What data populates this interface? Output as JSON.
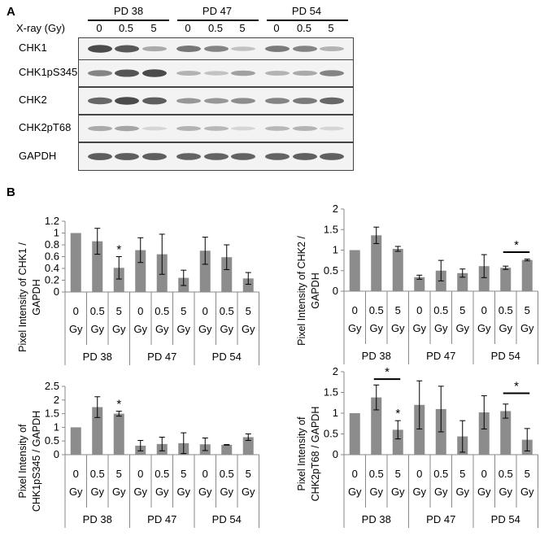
{
  "panel_a": {
    "letter": "A",
    "xray_label": "X-ray (Gy)",
    "groups": [
      "PD 38",
      "PD 47",
      "PD 54"
    ],
    "doses": [
      "0",
      "0.5",
      "5",
      "0",
      "0.5",
      "5",
      "0",
      "0.5",
      "5"
    ],
    "blots": [
      {
        "label": "CHK1",
        "intensity": [
          0.85,
          0.78,
          0.35,
          0.62,
          0.55,
          0.22,
          0.6,
          0.55,
          0.3
        ]
      },
      {
        "label": "CHK1pS345",
        "intensity": [
          0.55,
          0.8,
          0.85,
          0.3,
          0.22,
          0.4,
          0.3,
          0.35,
          0.55
        ]
      },
      {
        "label": "CHK2",
        "intensity": [
          0.7,
          0.85,
          0.75,
          0.45,
          0.45,
          0.5,
          0.55,
          0.6,
          0.7
        ]
      },
      {
        "label": "CHK2pT68",
        "intensity": [
          0.35,
          0.38,
          0.12,
          0.3,
          0.28,
          0.12,
          0.28,
          0.3,
          0.12
        ]
      },
      {
        "label": "GAPDH",
        "intensity": [
          0.75,
          0.75,
          0.75,
          0.72,
          0.72,
          0.72,
          0.72,
          0.74,
          0.74
        ]
      }
    ]
  },
  "panel_b": {
    "letter": "B"
  },
  "chart_data": [
    {
      "type": "bar",
      "ylabel": "Pixel Intensity of CHK1 / GAPDH",
      "ylabel_lines": [
        "Pixel Intensity of CHK1 /",
        "GAPDH"
      ],
      "categories": [
        "0 Gy",
        "0.5 Gy",
        "5 Gy",
        "0 Gy",
        "0.5 Gy",
        "5 Gy",
        "0 Gy",
        "0.5 Gy",
        "5 Gy"
      ],
      "groups": [
        "PD 38",
        "PD 47",
        "PD 54"
      ],
      "yticks": [
        "0",
        "0.2",
        "0.4",
        "0.6",
        "0.8",
        "1",
        "1.2"
      ],
      "ylim": [
        0,
        1.2
      ],
      "values": [
        1.0,
        0.86,
        0.41,
        0.71,
        0.64,
        0.24,
        0.7,
        0.59,
        0.23
      ],
      "errors": [
        0,
        0.22,
        0.19,
        0.21,
        0.34,
        0.13,
        0.23,
        0.21,
        0.1
      ],
      "stars": [
        {
          "index": 2,
          "text": "*"
        }
      ],
      "brackets": []
    },
    {
      "type": "bar",
      "ylabel": "Pixel Intensity of CHK2 / GAPDH",
      "ylabel_lines": [
        "Pixel Intensity of CHK2 /",
        "GAPDH"
      ],
      "categories": [
        "0 Gy",
        "0.5 Gy",
        "5 Gy",
        "0 Gy",
        "0.5 Gy",
        "5 Gy",
        "0 Gy",
        "0.5 Gy",
        "5 Gy"
      ],
      "groups": [
        "PD 38",
        "PD 47",
        "PD 54"
      ],
      "yticks": [
        "0",
        "0.5",
        "1",
        "1.5",
        "2"
      ],
      "ylim": [
        0,
        2
      ],
      "values": [
        1.0,
        1.36,
        1.03,
        0.34,
        0.5,
        0.44,
        0.61,
        0.57,
        0.76
      ],
      "errors": [
        0,
        0.2,
        0.06,
        0.05,
        0.25,
        0.1,
        0.28,
        0.04,
        0.02
      ],
      "stars": [],
      "brackets": [
        {
          "from": 7,
          "to": 8,
          "y": 0.95,
          "text": "*"
        }
      ]
    },
    {
      "type": "bar",
      "ylabel": "Pixel Intensity of CHK1pS345 / GAPDH",
      "ylabel_lines": [
        "Pixel Intensity of",
        "CHK1pS345 / GAPDH"
      ],
      "categories": [
        "0 Gy",
        "0.5 Gy",
        "5 Gy",
        "0 Gy",
        "0.5 Gy",
        "5 Gy",
        "0 Gy",
        "0.5 Gy",
        "5 Gy"
      ],
      "groups": [
        "PD 38",
        "PD 47",
        "PD 54"
      ],
      "yticks": [
        "0",
        "0.5",
        "1",
        "1.5",
        "2",
        "2.5"
      ],
      "ylim": [
        0,
        2.5
      ],
      "values": [
        1.0,
        1.74,
        1.5,
        0.33,
        0.39,
        0.42,
        0.38,
        0.36,
        0.64
      ],
      "errors": [
        0,
        0.38,
        0.09,
        0.19,
        0.25,
        0.38,
        0.23,
        0.01,
        0.12
      ],
      "stars": [
        {
          "index": 2,
          "text": "*"
        }
      ],
      "brackets": []
    },
    {
      "type": "bar",
      "ylabel": "Pixel Intensity of CHK2pT68 / GAPDH",
      "ylabel_lines": [
        "Pixel Intensity of",
        "CHK2pT68 / GAPDH"
      ],
      "categories": [
        "0 Gy",
        "0.5 Gy",
        "5 Gy",
        "0 Gy",
        "0.5 Gy",
        "5 Gy",
        "0 Gy",
        "0.5 Gy",
        "5 Gy"
      ],
      "groups": [
        "PD 38",
        "PD 47",
        "PD 54"
      ],
      "yticks": [
        "0",
        "0.5",
        "1",
        "1.5",
        "2"
      ],
      "ylim": [
        0,
        2
      ],
      "values": [
        1.0,
        1.38,
        0.6,
        1.2,
        1.1,
        0.44,
        1.02,
        1.05,
        0.36
      ],
      "errors": [
        0,
        0.3,
        0.22,
        0.58,
        0.55,
        0.38,
        0.4,
        0.17,
        0.27
      ],
      "stars": [
        {
          "index": 2,
          "text": "*"
        }
      ],
      "brackets": [
        {
          "from": 1,
          "to": 2,
          "y": 1.82,
          "text": "*"
        },
        {
          "from": 7,
          "to": 8,
          "y": 1.48,
          "text": "*"
        }
      ]
    }
  ]
}
